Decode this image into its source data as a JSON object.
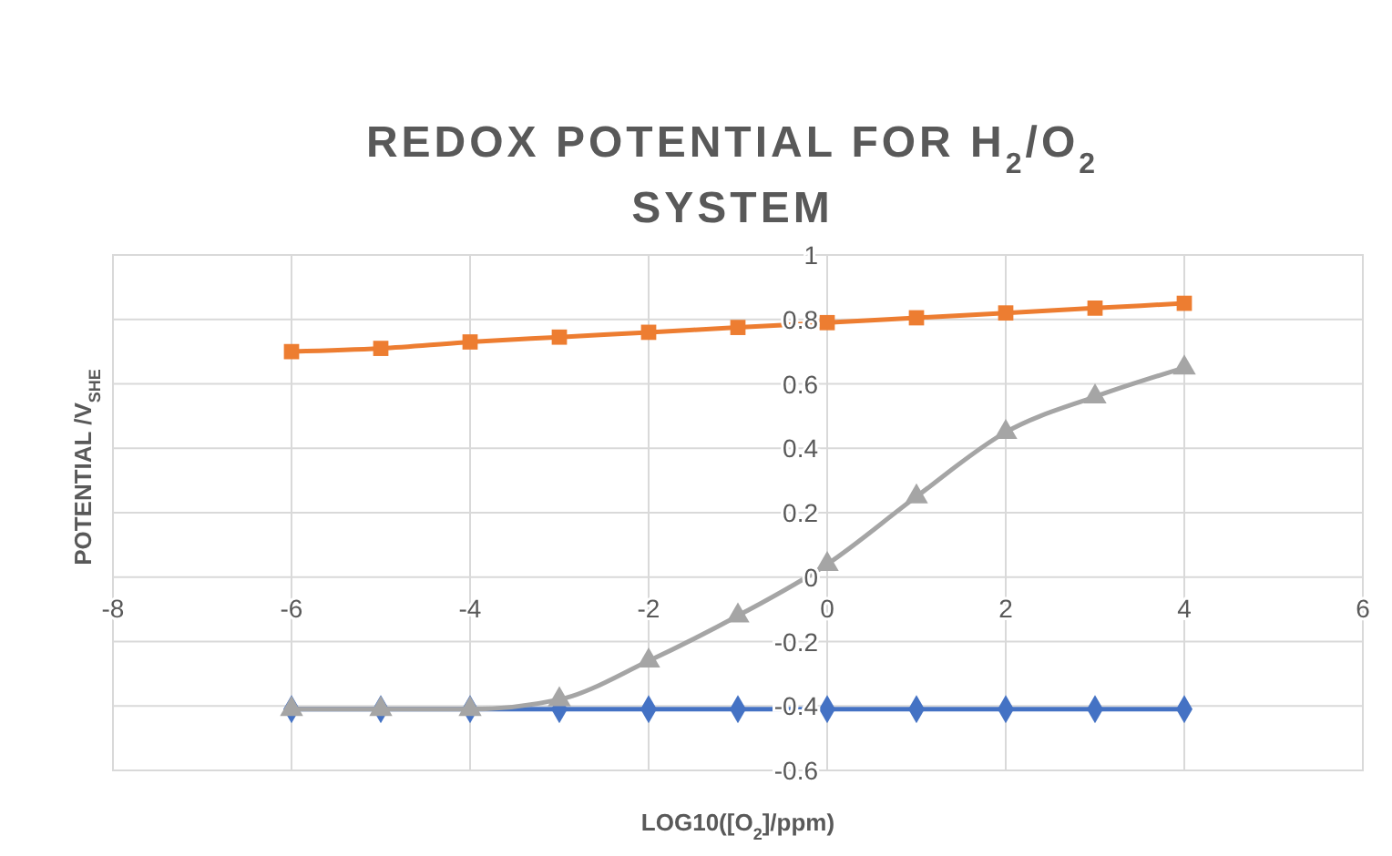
{
  "chart_data": {
    "type": "line",
    "title": "REDOX POTENTIAL FOR H$_{2}$/O$_{2}$ SYSTEM",
    "xlabel": "LOG10([O$_{2}$]/ppm)",
    "ylabel": "POTENTIAL /V$_{SHE}$",
    "x": [
      -6,
      -5,
      -4,
      -3,
      -2,
      -1,
      0,
      1,
      2,
      3,
      4
    ],
    "series": [
      {
        "color": "#4472c4",
        "marker": "diamond",
        "values": [
          -0.41,
          -0.41,
          -0.41,
          -0.41,
          -0.41,
          -0.41,
          -0.41,
          -0.41,
          -0.41,
          -0.41,
          -0.41
        ]
      },
      {
        "color": "#ed7d31",
        "marker": "square",
        "values": [
          0.7,
          0.71,
          0.73,
          0.745,
          0.76,
          0.775,
          0.79,
          0.805,
          0.82,
          0.835,
          0.85
        ]
      },
      {
        "color": "#a5a5a5",
        "marker": "triangle",
        "values": [
          -0.41,
          -0.41,
          -0.41,
          -0.38,
          -0.26,
          -0.12,
          0.04,
          0.25,
          0.45,
          0.56,
          0.65
        ]
      }
    ],
    "xlim": [
      -8,
      6
    ],
    "xticks": [
      -8,
      -6,
      -4,
      -2,
      0,
      2,
      4,
      6
    ],
    "ylim": [
      -0.6,
      1
    ],
    "yticks": [
      -0.6,
      -0.4,
      -0.2,
      0,
      0.2,
      0.4,
      0.6,
      0.8,
      1
    ],
    "grid": true
  }
}
